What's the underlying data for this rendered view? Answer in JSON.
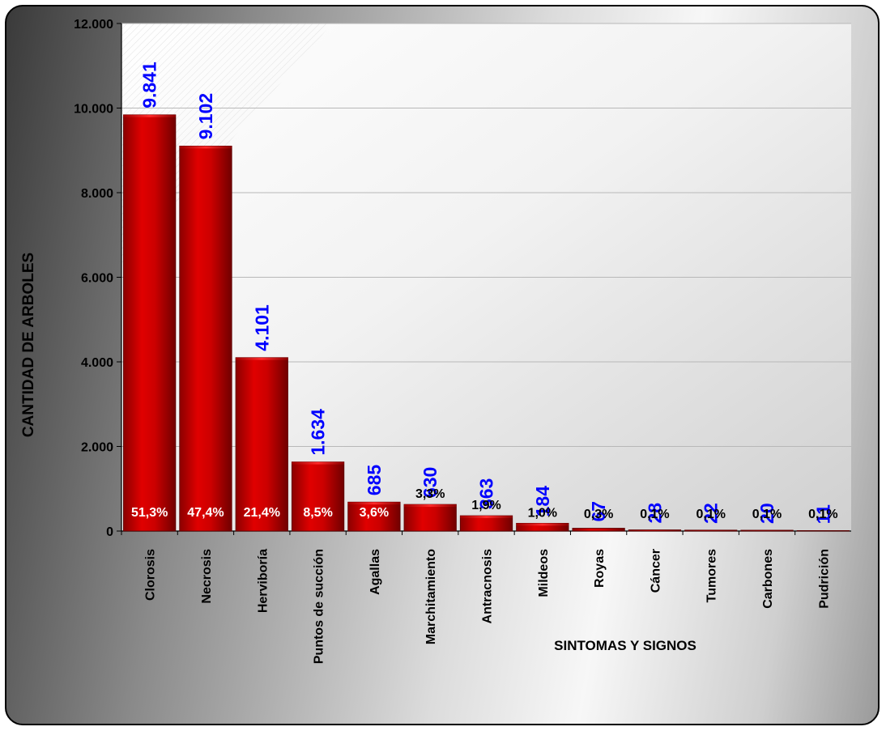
{
  "chart_data": {
    "type": "bar",
    "title": "",
    "xlabel": "SINTOMAS Y SIGNOS",
    "ylabel": "CANTIDAD DE ARBOLES",
    "ylim": [
      0,
      12000
    ],
    "yticks": [
      "0",
      "2.000",
      "4.000",
      "6.000",
      "8.000",
      "10.000",
      "12.000"
    ],
    "ytick_values": [
      0,
      2000,
      4000,
      6000,
      8000,
      10000,
      12000
    ],
    "grid": true,
    "legend": "none",
    "categories": [
      "Clorosis",
      "Necrosis",
      "Herviboría",
      "Puntos de  succión",
      "Agallas",
      "Marchitamiento",
      "Antracnosis",
      "Mildeos",
      "Royas",
      "Cáncer",
      "Tumores",
      "Carbones",
      "Pudrición"
    ],
    "values": [
      9841,
      9102,
      4101,
      1634,
      685,
      630,
      363,
      184,
      67,
      28,
      22,
      20,
      11
    ],
    "value_labels": [
      "9.841",
      "9.102",
      "4.101",
      "1.634",
      "685",
      "630",
      "363",
      "184",
      "67",
      "28",
      "22",
      "20",
      "11"
    ],
    "percent_labels": [
      "51,3%",
      "47,4%",
      "21,4%",
      "8,5%",
      "3,6%",
      "3,3%",
      "1,9%",
      "1,0%",
      "0,3%",
      "0,1%",
      "0,1%",
      "0,1%",
      "0,1%"
    ],
    "colors": {
      "bar": "#cc0000",
      "bar_dark": "#7a0000",
      "value_label": "#0000ff",
      "percent_inside": "#ffffff",
      "percent_outside": "#000000"
    }
  }
}
